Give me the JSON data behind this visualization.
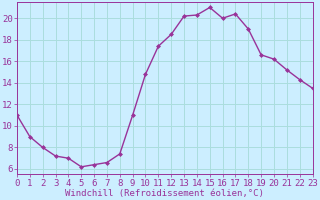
{
  "x": [
    0,
    1,
    2,
    3,
    4,
    5,
    6,
    7,
    8,
    9,
    10,
    11,
    12,
    13,
    14,
    15,
    16,
    17,
    18,
    19,
    20,
    21,
    22,
    23
  ],
  "y": [
    11,
    9,
    8,
    7.2,
    7,
    6.2,
    6.4,
    6.6,
    7.4,
    11,
    14.8,
    17.4,
    18.5,
    20.2,
    20.3,
    21,
    20,
    20.4,
    19,
    16.6,
    16.2,
    15.2,
    14.3,
    13.5
  ],
  "line_color": "#993399",
  "marker": "D",
  "marker_size": 2,
  "bg_color": "#cceeff",
  "grid_color": "#aadddd",
  "xlabel": "Windchill (Refroidissement éolien,°C)",
  "xlabel_color": "#993399",
  "tick_color": "#993399",
  "spine_color": "#993399",
  "xlim": [
    0,
    23
  ],
  "ylim": [
    5.5,
    21.5
  ],
  "yticks": [
    6,
    8,
    10,
    12,
    14,
    16,
    18,
    20
  ],
  "xticks": [
    0,
    1,
    2,
    3,
    4,
    5,
    6,
    7,
    8,
    9,
    10,
    11,
    12,
    13,
    14,
    15,
    16,
    17,
    18,
    19,
    20,
    21,
    22,
    23
  ],
  "line_width": 1.0,
  "font_size": 6.5
}
